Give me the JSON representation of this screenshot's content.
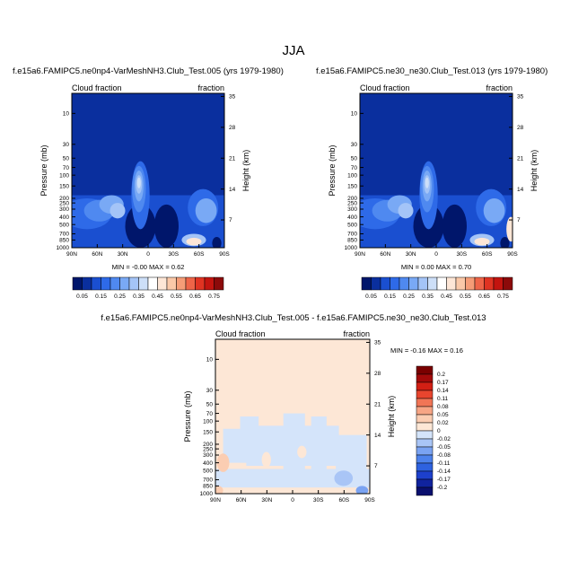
{
  "page": {
    "season_title": "JJA"
  },
  "colors": {
    "cloud_palette": [
      "#00166b",
      "#0a2f9e",
      "#1a4fd0",
      "#2e6ae8",
      "#4f89f0",
      "#79a9f5",
      "#a4c4f7",
      "#cddff8",
      "#ffffff",
      "#fde6d6",
      "#fac8a8",
      "#f59c77",
      "#ee6448",
      "#e03322",
      "#c3140f",
      "#8c0a0a"
    ],
    "diff_palette": [
      "#0a0f6e",
      "#10239e",
      "#1d40cc",
      "#2e62e0",
      "#4d82ec",
      "#7aa3f2",
      "#a9c5f6",
      "#d4e4fa",
      "#fde7d6",
      "#fbcdb2",
      "#f7a585",
      "#f17556",
      "#e8452e",
      "#d21f14",
      "#a30a0a",
      "#7a0000"
    ]
  },
  "chart_data": [
    {
      "type": "heatmap",
      "title": "f.e15a6.FAMIPC5.ne0np4-VarMeshNH3.Club_Test.005 (yrs 1979-1980)",
      "left_string": "Cloud fraction",
      "right_string": "fraction",
      "ylabel": "Pressure (mb)",
      "y2label": "Height (km)",
      "x_ticks": [
        "90N",
        "60N",
        "30N",
        "0",
        "30S",
        "60S",
        "90S"
      ],
      "y_ticks": [
        "10",
        "30",
        "50",
        "70",
        "100",
        "150",
        "200",
        "250",
        "300",
        "400",
        "500",
        "700",
        "850",
        "1000"
      ],
      "y2_ticks": [
        "35",
        "28",
        "21",
        "14",
        "7"
      ],
      "min_label": "MIN =",
      "min_value": "-0.00",
      "max_label": "MAX =",
      "max_value": "0.62"
    },
    {
      "type": "heatmap",
      "title": "f.e15a6.FAMIPC5.ne30_ne30.Club_Test.013 (yrs 1979-1980)",
      "left_string": "Cloud fraction",
      "right_string": "fraction",
      "ylabel": "Pressure (mb)",
      "y2label": "Height (km)",
      "x_ticks": [
        "90N",
        "60N",
        "30N",
        "0",
        "30S",
        "60S",
        "90S"
      ],
      "y_ticks": [
        "10",
        "30",
        "50",
        "70",
        "100",
        "150",
        "200",
        "250",
        "300",
        "400",
        "500",
        "700",
        "850",
        "1000"
      ],
      "y2_ticks": [
        "35",
        "28",
        "21",
        "14",
        "7"
      ],
      "min_label": "MIN =",
      "min_value": "0.00",
      "max_label": "MAX =",
      "max_value": "0.70"
    },
    {
      "type": "heatmap",
      "title": "f.e15a6.FAMIPC5.ne0np4-VarMeshNH3.Club_Test.005 - f.e15a6.FAMIPC5.ne30_ne30.Club_Test.013",
      "left_string": "Cloud fraction",
      "right_string": "fraction",
      "ylabel": "Pressure (mb)",
      "y2label": "Height (km)",
      "x_ticks": [
        "90N",
        "60N",
        "30N",
        "0",
        "30S",
        "60S",
        "90S"
      ],
      "y_ticks": [
        "10",
        "30",
        "50",
        "70",
        "100",
        "150",
        "200",
        "250",
        "300",
        "400",
        "500",
        "700",
        "850",
        "1000"
      ],
      "y2_ticks": [
        "35",
        "28",
        "21",
        "14",
        "7"
      ],
      "min_label": "MIN =",
      "min_value": "-0.16",
      "max_label": "MAX =",
      "max_value": "0.16"
    }
  ],
  "colorbar_top": {
    "labels": [
      "0.05",
      "0.15",
      "0.25",
      "0.35",
      "0.45",
      "0.55",
      "0.65",
      "0.75"
    ]
  },
  "colorbar_diff": {
    "labels": [
      "0.2",
      "0.17",
      "0.14",
      "0.11",
      "0.08",
      "0.05",
      "0.02",
      "0",
      "-0.02",
      "-0.05",
      "-0.08",
      "-0.11",
      "-0.14",
      "-0.17",
      "-0.2"
    ]
  }
}
